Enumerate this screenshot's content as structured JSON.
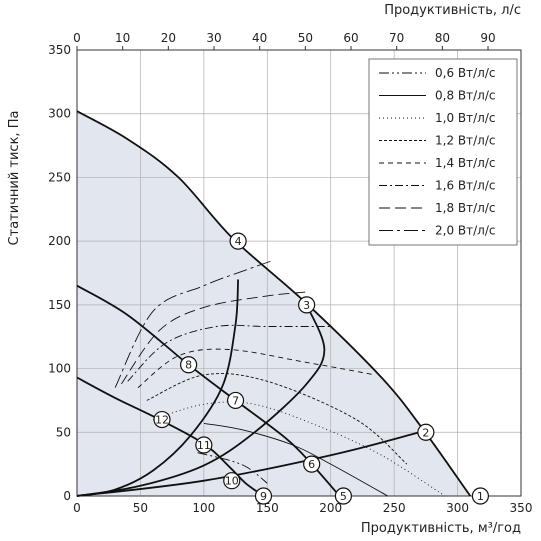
{
  "chart_data": {
    "type": "line",
    "title": "",
    "xlabel": "Продуктивність, м³/год",
    "ylabel": "Статичний тиск, Па",
    "x2label": "Продуктивність, л/с",
    "xlim": [
      0,
      350
    ],
    "ylim": [
      0,
      350
    ],
    "x2lim": [
      0,
      97.22
    ],
    "xticks": [
      0,
      50,
      100,
      150,
      200,
      250,
      300,
      350
    ],
    "yticks": [
      0,
      50,
      100,
      150,
      200,
      250,
      300,
      350
    ],
    "x2ticks": [
      0,
      10,
      20,
      30,
      40,
      50,
      60,
      70,
      80,
      90
    ],
    "grid": true,
    "legend_position": "top-right",
    "shaded_region": [
      [
        0,
        302
      ],
      [
        40,
        280
      ],
      [
        80,
        250
      ],
      [
        123,
        202
      ],
      [
        180,
        152
      ],
      [
        240,
        93
      ],
      [
        273,
        52
      ],
      [
        310,
        0
      ],
      [
        0,
        0
      ]
    ],
    "fan_curves": [
      {
        "name": "speed-high",
        "points": [
          [
            0,
            302
          ],
          [
            40,
            280
          ],
          [
            80,
            250
          ],
          [
            123,
            202
          ],
          [
            180,
            152
          ],
          [
            240,
            93
          ],
          [
            273,
            52
          ],
          [
            310,
            0
          ]
        ]
      },
      {
        "name": "speed-mid",
        "points": [
          [
            0,
            165
          ],
          [
            40,
            142
          ],
          [
            88,
            103
          ],
          [
            125,
            75
          ],
          [
            165,
            45
          ],
          [
            185,
            25
          ],
          [
            207,
            0
          ]
        ]
      },
      {
        "name": "speed-low",
        "points": [
          [
            0,
            93
          ],
          [
            30,
            77
          ],
          [
            65,
            60
          ],
          [
            100,
            41
          ],
          [
            120,
            23
          ],
          [
            133,
            10
          ],
          [
            147,
            0
          ]
        ]
      }
    ],
    "system_curves": [
      {
        "name": "system-1",
        "points": [
          [
            0,
            0
          ],
          [
            100,
            12
          ],
          [
            200,
            32
          ],
          [
            270,
            50
          ]
        ]
      },
      {
        "name": "system-2",
        "points": [
          [
            0,
            0
          ],
          [
            50,
            8
          ],
          [
            100,
            24
          ],
          [
            140,
            50
          ],
          [
            181,
            88
          ],
          [
            195,
            115
          ],
          [
            181,
            150
          ]
        ]
      },
      {
        "name": "system-3",
        "points": [
          [
            0,
            0
          ],
          [
            30,
            5
          ],
          [
            60,
            20
          ],
          [
            90,
            48
          ],
          [
            115,
            87
          ],
          [
            125,
            135
          ],
          [
            127,
            170
          ]
        ]
      }
    ],
    "series": [
      {
        "name": "0,6 Вт/л/с",
        "dash": "10,3,2,3,2,3",
        "width": 0.9,
        "points": [
          [
            95,
            34
          ],
          [
            120,
            28
          ],
          [
            135,
            22
          ],
          [
            150,
            10
          ]
        ]
      },
      {
        "name": "0,8 Вт/л/с",
        "dash": "",
        "width": 0.9,
        "points": [
          [
            100,
            57
          ],
          [
            130,
            52
          ],
          [
            170,
            40
          ],
          [
            200,
            25
          ],
          [
            245,
            0
          ]
        ]
      },
      {
        "name": "1,0 Вт/л/с",
        "dash": "1,3",
        "width": 0.9,
        "points": [
          [
            60,
            60
          ],
          [
            100,
            72
          ],
          [
            140,
            72
          ],
          [
            190,
            55
          ],
          [
            240,
            32
          ],
          [
            290,
            0
          ]
        ]
      },
      {
        "name": "1,2 Вт/л/с",
        "dash": "3,2",
        "width": 0.9,
        "points": [
          [
            55,
            75
          ],
          [
            100,
            95
          ],
          [
            150,
            90
          ],
          [
            220,
            60
          ],
          [
            260,
            25
          ]
        ]
      },
      {
        "name": "1,4 Вт/л/с",
        "dash": "5,4",
        "width": 0.9,
        "points": [
          [
            48,
            85
          ],
          [
            80,
            110
          ],
          [
            120,
            115
          ],
          [
            180,
            105
          ],
          [
            235,
            95
          ]
        ]
      },
      {
        "name": "1,6 Вт/л/с",
        "dash": "8,3,2,3",
        "width": 0.9,
        "points": [
          [
            40,
            90
          ],
          [
            70,
            120
          ],
          [
            110,
            133
          ],
          [
            150,
            133
          ],
          [
            200,
            133
          ]
        ]
      },
      {
        "name": "1,8 Вт/л/с",
        "dash": "11,5",
        "width": 0.9,
        "points": [
          [
            35,
            88
          ],
          [
            65,
            130
          ],
          [
            100,
            148
          ],
          [
            150,
            157
          ],
          [
            180,
            160
          ]
        ]
      },
      {
        "name": "2,0 Вт/л/с",
        "dash": "14,4,3,4",
        "width": 0.9,
        "points": [
          [
            30,
            85
          ],
          [
            60,
            145
          ],
          [
            100,
            165
          ],
          [
            135,
            178
          ],
          [
            155,
            185
          ]
        ]
      }
    ],
    "markers": [
      {
        "label": "1",
        "x": 318,
        "y": 0
      },
      {
        "label": "2",
        "x": 275,
        "y": 50
      },
      {
        "label": "3",
        "x": 181,
        "y": 150
      },
      {
        "label": "4",
        "x": 127,
        "y": 200
      },
      {
        "label": "5",
        "x": 210,
        "y": 0
      },
      {
        "label": "6",
        "x": 185,
        "y": 25
      },
      {
        "label": "7",
        "x": 125,
        "y": 75
      },
      {
        "label": "8",
        "x": 88,
        "y": 103
      },
      {
        "label": "9",
        "x": 147,
        "y": 0
      },
      {
        "label": "10",
        "x": 122,
        "y": 12
      },
      {
        "label": "11",
        "x": 100,
        "y": 40
      },
      {
        "label": "12",
        "x": 67,
        "y": 60
      }
    ],
    "colors": {
      "shade": "#e2e6ef",
      "grid": "#b0b0b0",
      "curve": "#111111"
    }
  }
}
